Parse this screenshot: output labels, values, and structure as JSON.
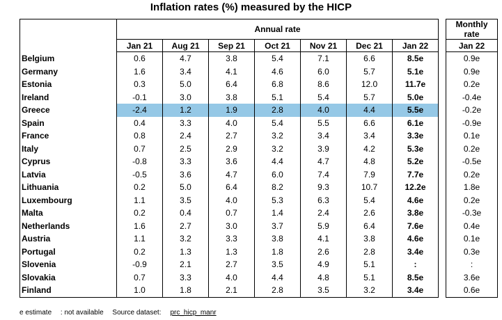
{
  "title": "Inflation rates (%) measured by the HICP",
  "annual_header": "Annual rate",
  "monthly_header_line1": "Monthly",
  "monthly_header_line2": "rate",
  "columns": [
    "Jan 21",
    "Aug 21",
    "Sep 21",
    "Oct 21",
    "Nov 21",
    "Dec 21",
    "Jan 22"
  ],
  "monthly_column": "Jan 22",
  "highlight_color": "#95c8e6",
  "rows": [
    {
      "country": "Belgium",
      "values": [
        "0.6",
        "4.7",
        "3.8",
        "5.4",
        "7.1",
        "6.6",
        "8.5e"
      ],
      "monthly": "0.9e"
    },
    {
      "country": "Germany",
      "values": [
        "1.6",
        "3.4",
        "4.1",
        "4.6",
        "6.0",
        "5.7",
        "5.1e"
      ],
      "monthly": "0.9e"
    },
    {
      "country": "Estonia",
      "values": [
        "0.3",
        "5.0",
        "6.4",
        "6.8",
        "8.6",
        "12.0",
        "11.7e"
      ],
      "monthly": "0.2e"
    },
    {
      "country": "Ireland",
      "values": [
        "-0.1",
        "3.0",
        "3.8",
        "5.1",
        "5.4",
        "5.7",
        "5.0e"
      ],
      "monthly": "-0.4e"
    },
    {
      "country": "Greece",
      "values": [
        "-2.4",
        "1.2",
        "1.9",
        "2.8",
        "4.0",
        "4.4",
        "5.5e"
      ],
      "monthly": "-0.2e"
    },
    {
      "country": "Spain",
      "values": [
        "0.4",
        "3.3",
        "4.0",
        "5.4",
        "5.5",
        "6.6",
        "6.1e"
      ],
      "monthly": "-0.9e"
    },
    {
      "country": "France",
      "values": [
        "0.8",
        "2.4",
        "2.7",
        "3.2",
        "3.4",
        "3.4",
        "3.3e"
      ],
      "monthly": "0.1e"
    },
    {
      "country": "Italy",
      "values": [
        "0.7",
        "2.5",
        "2.9",
        "3.2",
        "3.9",
        "4.2",
        "5.3e"
      ],
      "monthly": "0.2e"
    },
    {
      "country": "Cyprus",
      "values": [
        "-0.8",
        "3.3",
        "3.6",
        "4.4",
        "4.7",
        "4.8",
        "5.2e"
      ],
      "monthly": "-0.5e"
    },
    {
      "country": "Latvia",
      "values": [
        "-0.5",
        "3.6",
        "4.7",
        "6.0",
        "7.4",
        "7.9",
        "7.7e"
      ],
      "monthly": "0.2e"
    },
    {
      "country": "Lithuania",
      "values": [
        "0.2",
        "5.0",
        "6.4",
        "8.2",
        "9.3",
        "10.7",
        "12.2e"
      ],
      "monthly": "1.8e"
    },
    {
      "country": "Luxembourg",
      "values": [
        "1.1",
        "3.5",
        "4.0",
        "5.3",
        "6.3",
        "5.4",
        "4.6e"
      ],
      "monthly": "0.2e"
    },
    {
      "country": "Malta",
      "values": [
        "0.2",
        "0.4",
        "0.7",
        "1.4",
        "2.4",
        "2.6",
        "3.8e"
      ],
      "monthly": "-0.3e"
    },
    {
      "country": "Netherlands",
      "values": [
        "1.6",
        "2.7",
        "3.0",
        "3.7",
        "5.9",
        "6.4",
        "7.6e"
      ],
      "monthly": "0.4e"
    },
    {
      "country": "Austria",
      "values": [
        "1.1",
        "3.2",
        "3.3",
        "3.8",
        "4.1",
        "3.8",
        "4.6e"
      ],
      "monthly": "0.1e"
    },
    {
      "country": "Portugal",
      "values": [
        "0.2",
        "1.3",
        "1.3",
        "1.8",
        "2.6",
        "2.8",
        "3.4e"
      ],
      "monthly": "0.3e"
    },
    {
      "country": "Slovenia",
      "values": [
        "-0.9",
        "2.1",
        "2.7",
        "3.5",
        "4.9",
        "5.1",
        ":"
      ],
      "monthly": ":"
    },
    {
      "country": "Slovakia",
      "values": [
        "0.7",
        "3.3",
        "4.0",
        "4.4",
        "4.8",
        "5.1",
        "8.5e"
      ],
      "monthly": "3.6e"
    },
    {
      "country": "Finland",
      "values": [
        "1.0",
        "1.8",
        "2.1",
        "2.8",
        "3.5",
        "3.2",
        "3.4e"
      ],
      "monthly": "0.6e"
    }
  ],
  "highlighted_row": "Greece",
  "footer": {
    "estimate": "e estimate",
    "not_available": ": not available",
    "source_label": "Source dataset:",
    "source_link": "prc_hicp_manr"
  }
}
